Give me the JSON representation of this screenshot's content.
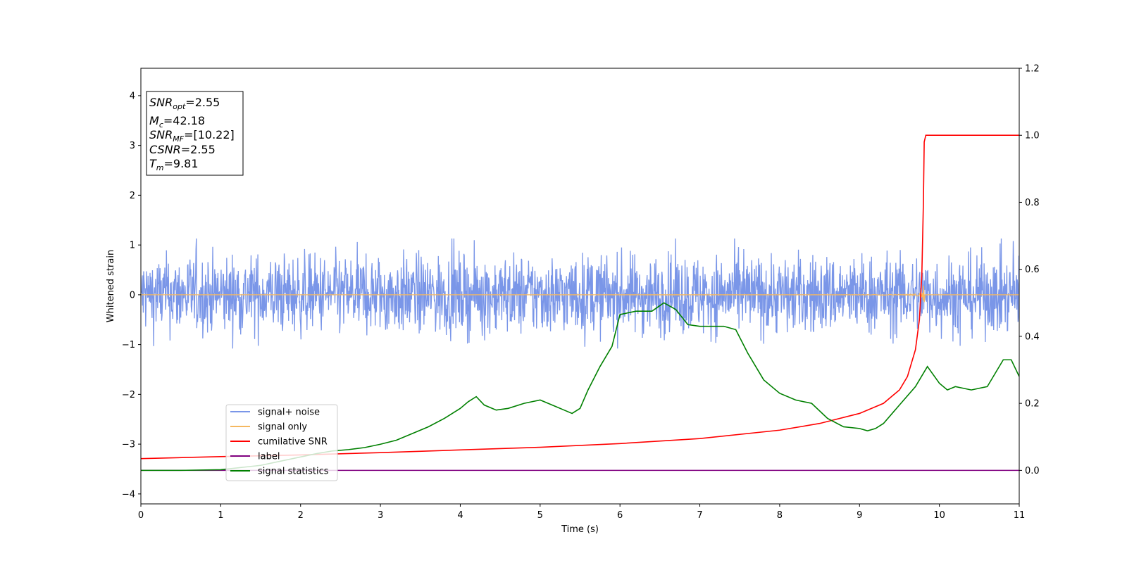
{
  "chart_data": {
    "type": "line",
    "xlabel": "Time (s)",
    "ylabel": "Whitened strain",
    "xlim": [
      0,
      11
    ],
    "ylim": [
      -4.2,
      4.55
    ],
    "y2lim": [
      -0.1,
      1.2
    ],
    "x_ticks": [
      "0",
      "1",
      "2",
      "3",
      "4",
      "5",
      "6",
      "7",
      "8",
      "9",
      "10",
      "11"
    ],
    "y_ticks": [
      "−4",
      "−3",
      "−2",
      "−1",
      "0",
      "1",
      "2",
      "3",
      "4"
    ],
    "y2_ticks": [
      "0.0",
      "0.2",
      "0.4",
      "0.6",
      "0.8",
      "1.0",
      "1.2"
    ],
    "grid": false,
    "legend_position": "lower-left",
    "annotation": [
      {
        "main": "SNR",
        "sub": "opt",
        "rest": "=2.55"
      },
      {
        "main": "M",
        "sub": "c",
        "rest": "=42.18"
      },
      {
        "main": "SNR",
        "sub": "MF",
        "rest": "=[10.22]"
      },
      {
        "main": "CSNR",
        "sub": "",
        "rest": "=2.55"
      },
      {
        "main": "T",
        "sub": "m",
        "rest": "=9.81"
      }
    ],
    "series": [
      {
        "name": "signal+ noise",
        "axis": "left",
        "color": "#7a96e8",
        "style": "noise",
        "mean": 0.0,
        "envelope": 0.75,
        "range": [
          -1.08,
          1.13
        ],
        "x_range": [
          0,
          11
        ]
      },
      {
        "name": "signal only",
        "axis": "left",
        "color": "#f5b860",
        "style": "chirp",
        "baseline": 0.0,
        "peak_time": 9.81,
        "peak_amplitude": 0.2
      },
      {
        "name": "cumilative SNR",
        "axis": "right",
        "color": "#ff0000",
        "x": [
          0,
          1,
          2,
          3,
          4,
          5,
          6,
          7,
          8,
          8.5,
          9,
          9.3,
          9.5,
          9.6,
          9.7,
          9.75,
          9.78,
          9.8,
          9.81,
          9.83,
          10,
          11
        ],
        "y": [
          0.035,
          0.041,
          0.046,
          0.053,
          0.061,
          0.069,
          0.08,
          0.095,
          0.12,
          0.14,
          0.17,
          0.2,
          0.24,
          0.28,
          0.36,
          0.45,
          0.58,
          0.8,
          0.98,
          1.0,
          1.0,
          1.0
        ]
      },
      {
        "name": "label",
        "axis": "right",
        "color": "#800080",
        "x": [
          0,
          11
        ],
        "y": [
          0,
          0
        ]
      },
      {
        "name": "signal statistics",
        "axis": "right",
        "color": "#008000",
        "x": [
          0,
          0.5,
          1,
          1.5,
          2,
          2.2,
          2.4,
          2.6,
          2.8,
          3,
          3.2,
          3.4,
          3.6,
          3.8,
          4,
          4.1,
          4.2,
          4.3,
          4.45,
          4.6,
          4.8,
          4.9,
          5,
          5.1,
          5.2,
          5.3,
          5.4,
          5.5,
          5.6,
          5.75,
          5.9,
          6,
          6.2,
          6.4,
          6.55,
          6.7,
          6.85,
          7.0,
          7.2,
          7.3,
          7.45,
          7.6,
          7.8,
          8,
          8.2,
          8.4,
          8.6,
          8.8,
          9,
          9.1,
          9.2,
          9.3,
          9.5,
          9.7,
          9.85,
          10,
          10.1,
          10.2,
          10.4,
          10.6,
          10.8,
          10.9,
          11
        ],
        "y": [
          0.0,
          0.0,
          0.002,
          0.015,
          0.04,
          0.05,
          0.058,
          0.062,
          0.068,
          0.078,
          0.09,
          0.11,
          0.13,
          0.155,
          0.185,
          0.205,
          0.22,
          0.195,
          0.18,
          0.185,
          0.2,
          0.205,
          0.21,
          0.2,
          0.19,
          0.18,
          0.17,
          0.185,
          0.24,
          0.31,
          0.37,
          0.465,
          0.475,
          0.475,
          0.5,
          0.48,
          0.435,
          0.43,
          0.43,
          0.43,
          0.42,
          0.35,
          0.27,
          0.23,
          0.21,
          0.2,
          0.155,
          0.13,
          0.125,
          0.118,
          0.125,
          0.14,
          0.195,
          0.25,
          0.31,
          0.26,
          0.24,
          0.25,
          0.24,
          0.25,
          0.33,
          0.33,
          0.28
        ]
      }
    ]
  }
}
